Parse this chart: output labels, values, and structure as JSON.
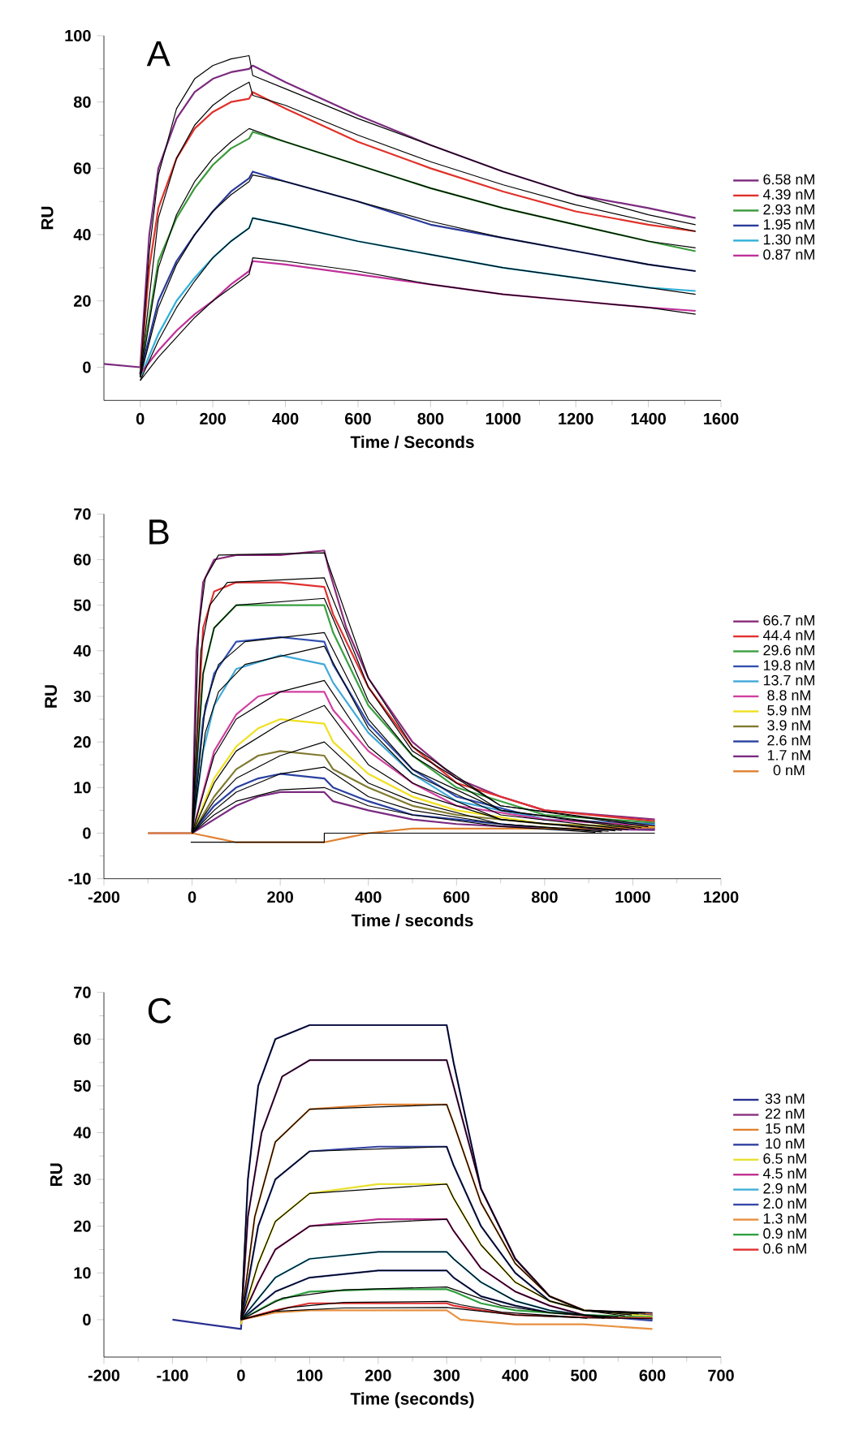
{
  "chart_data": [
    {
      "type": "line",
      "title": "A",
      "xlabel": "Time / Seconds",
      "ylabel": "RU",
      "xlim": [
        -100,
        1600
      ],
      "ylim": [
        -10,
        100
      ],
      "xticks": [
        0,
        200,
        400,
        600,
        800,
        1000,
        1200,
        1400,
        1600
      ],
      "yticks": [
        0,
        20,
        40,
        60,
        80,
        100
      ],
      "legend": "right",
      "series": [
        {
          "name": "6.58 nM",
          "color": "#7b2a7e",
          "x": [
            -100,
            0,
            25,
            50,
            100,
            150,
            200,
            250,
            300,
            310,
            400,
            600,
            800,
            1000,
            1200,
            1400,
            1530
          ],
          "values": [
            1,
            0,
            40,
            60,
            75,
            83,
            87,
            89,
            90,
            91,
            86,
            76,
            67,
            59,
            52,
            48,
            45
          ]
        },
        {
          "name": "4.39 nM",
          "color": "#e0312a",
          "x": [
            0,
            25,
            50,
            100,
            150,
            200,
            250,
            300,
            310,
            400,
            600,
            800,
            1000,
            1200,
            1400,
            1530
          ],
          "values": [
            -2,
            30,
            48,
            63,
            72,
            77,
            80,
            81,
            83,
            78,
            68,
            60,
            53,
            47,
            43,
            41
          ]
        },
        {
          "name": "2.93 nM",
          "color": "#3a9a3a",
          "x": [
            0,
            50,
            100,
            150,
            200,
            250,
            300,
            310,
            400,
            600,
            800,
            1000,
            1200,
            1400,
            1530
          ],
          "values": [
            -2,
            32,
            45,
            54,
            61,
            66,
            69,
            71,
            68,
            61,
            54,
            48,
            43,
            38,
            35
          ]
        },
        {
          "name": "1.95 nM",
          "color": "#2a3a9a",
          "x": [
            0,
            50,
            100,
            150,
            200,
            250,
            300,
            310,
            400,
            600,
            800,
            1000,
            1200,
            1400,
            1530
          ],
          "values": [
            -2,
            20,
            32,
            40,
            47,
            53,
            57,
            59,
            56,
            50,
            43,
            39,
            35,
            31,
            29
          ]
        },
        {
          "name": "1.30 nM",
          "color": "#30b0d8",
          "x": [
            0,
            50,
            100,
            150,
            200,
            250,
            300,
            310,
            400,
            600,
            800,
            1000,
            1200,
            1400,
            1530
          ],
          "values": [
            -3,
            10,
            20,
            27,
            33,
            38,
            42,
            45,
            43,
            38,
            34,
            30,
            27,
            24,
            23
          ]
        },
        {
          "name": "0.87 nM",
          "color": "#c0309a",
          "x": [
            0,
            50,
            100,
            150,
            200,
            250,
            300,
            310,
            400,
            600,
            800,
            1000,
            1200,
            1400,
            1530
          ],
          "values": [
            -2,
            5,
            11,
            16,
            20,
            25,
            29,
            32,
            31,
            28,
            25,
            22,
            20,
            18,
            17
          ]
        },
        {
          "color": "#000000",
          "x": [
            0,
            25,
            50,
            100,
            150,
            200,
            250,
            300,
            310,
            400,
            600,
            800,
            1000,
            1200,
            1400,
            1530
          ],
          "values": [
            -3,
            35,
            58,
            78,
            87,
            91,
            93,
            94,
            88,
            84,
            75,
            67,
            59,
            52,
            46,
            43
          ]
        },
        {
          "color": "#000000",
          "x": [
            0,
            50,
            100,
            150,
            200,
            250,
            300,
            310,
            400,
            600,
            800,
            1000,
            1200,
            1400,
            1530
          ],
          "values": [
            -3,
            45,
            63,
            73,
            79,
            83,
            86,
            82,
            79,
            70,
            62,
            55,
            49,
            44,
            41
          ]
        },
        {
          "color": "#000000",
          "x": [
            0,
            50,
            100,
            150,
            200,
            250,
            300,
            400,
            600,
            800,
            1000,
            1200,
            1400,
            1530
          ],
          "values": [
            -3,
            30,
            46,
            56,
            63,
            68,
            72,
            68,
            61,
            54,
            48,
            43,
            38,
            36
          ]
        },
        {
          "color": "#000000",
          "x": [
            0,
            50,
            100,
            150,
            200,
            250,
            300,
            310,
            400,
            600,
            800,
            1000,
            1200,
            1400,
            1530
          ],
          "values": [
            -3,
            18,
            31,
            40,
            47,
            52,
            56,
            58,
            56,
            50,
            44,
            39,
            35,
            31,
            29
          ]
        },
        {
          "color": "#000000",
          "x": [
            0,
            50,
            100,
            150,
            200,
            250,
            300,
            310,
            400,
            600,
            800,
            1000,
            1200,
            1400,
            1530
          ],
          "values": [
            -4,
            8,
            18,
            26,
            33,
            38,
            42,
            45,
            43,
            38,
            34,
            30,
            27,
            24,
            22
          ]
        },
        {
          "color": "#000000",
          "x": [
            0,
            50,
            100,
            150,
            200,
            250,
            300,
            310,
            400,
            600,
            800,
            1000,
            1200,
            1400,
            1530
          ],
          "values": [
            -4,
            3,
            9,
            15,
            20,
            24,
            28,
            33,
            32,
            29,
            25,
            22,
            20,
            18,
            16
          ]
        }
      ]
    },
    {
      "type": "line",
      "title": "B",
      "xlabel": "Time / seconds",
      "ylabel": "RU",
      "xlim": [
        -200,
        1200
      ],
      "ylim": [
        -10,
        70
      ],
      "xticks": [
        -200,
        0,
        200,
        400,
        600,
        800,
        1000,
        1200
      ],
      "yticks": [
        -10,
        0,
        10,
        20,
        30,
        40,
        50,
        60,
        70
      ],
      "legend": "right",
      "series": [
        {
          "name": "66.7 nM",
          "color": "#8a2a7a",
          "x": [
            -100,
            0,
            10,
            25,
            50,
            100,
            200,
            300,
            310,
            350,
            400,
            500,
            600,
            700,
            800,
            1050
          ],
          "values": [
            0,
            0,
            40,
            55,
            60,
            61,
            61,
            62,
            58,
            45,
            34,
            20,
            12,
            8,
            5,
            3
          ]
        },
        {
          "name": "44.4 nM",
          "color": "#e03030",
          "x": [
            0,
            25,
            50,
            100,
            200,
            300,
            320,
            400,
            500,
            600,
            800,
            1050
          ],
          "values": [
            0,
            45,
            53,
            55,
            55,
            54,
            48,
            32,
            19,
            11,
            5,
            2.6
          ]
        },
        {
          "name": "29.6 nM",
          "color": "#3aa040",
          "x": [
            0,
            25,
            50,
            100,
            200,
            300,
            320,
            400,
            500,
            600,
            800,
            1050
          ],
          "values": [
            0,
            35,
            45,
            50,
            50,
            50,
            44,
            28,
            17,
            10,
            4,
            2.3
          ]
        },
        {
          "name": "19.8 nM",
          "color": "#3050b0",
          "x": [
            0,
            25,
            50,
            100,
            200,
            300,
            320,
            400,
            500,
            600,
            800,
            1050
          ],
          "values": [
            0,
            25,
            35,
            42,
            43,
            42,
            37,
            24,
            14,
            8,
            3,
            2
          ]
        },
        {
          "name": "13.7 nM",
          "color": "#40a8d8",
          "x": [
            0,
            25,
            50,
            100,
            200,
            300,
            320,
            400,
            500,
            600,
            800,
            1050
          ],
          "values": [
            0,
            18,
            28,
            36,
            39,
            37,
            33,
            22,
            13,
            7,
            3,
            1.8
          ]
        },
        {
          "name": "8.8 nM",
          "color": "#d040a0",
          "x": [
            0,
            50,
            100,
            150,
            200,
            300,
            320,
            400,
            500,
            600,
            800,
            1050
          ],
          "values": [
            0,
            18,
            26,
            30,
            31,
            31,
            27,
            18,
            11,
            6,
            3,
            1.5
          ]
        },
        {
          "name": "5.9 nM",
          "color": "#f0e020",
          "x": [
            0,
            50,
            100,
            150,
            200,
            300,
            320,
            400,
            500,
            600,
            800,
            1050
          ],
          "values": [
            0,
            12,
            19,
            23,
            25,
            24,
            20,
            13,
            8,
            5,
            2,
            1.3
          ]
        },
        {
          "name": "3.9 nM",
          "color": "#807a30",
          "x": [
            0,
            50,
            100,
            150,
            200,
            300,
            320,
            400,
            500,
            600,
            800,
            1050
          ],
          "values": [
            0,
            8,
            14,
            17,
            18,
            17,
            14,
            10,
            6,
            4,
            2,
            1.1
          ]
        },
        {
          "name": "2.6 nM",
          "color": "#2840a0",
          "x": [
            0,
            50,
            100,
            150,
            200,
            300,
            320,
            400,
            500,
            600,
            800,
            1050
          ],
          "values": [
            0,
            6,
            10,
            12,
            13,
            12,
            10,
            7,
            4,
            3,
            1,
            0.9
          ]
        },
        {
          "name": "1.7 nM",
          "color": "#7a2a80",
          "x": [
            0,
            50,
            100,
            150,
            200,
            300,
            320,
            400,
            500,
            600,
            800,
            1050
          ],
          "values": [
            0,
            3,
            6,
            8,
            9,
            9,
            7,
            5,
            3,
            2,
            1,
            0.7
          ]
        },
        {
          "name": "0 nM",
          "color": "#e08030",
          "x": [
            -100,
            0,
            50,
            100,
            200,
            300,
            350,
            400,
            500,
            600,
            800,
            1050
          ],
          "values": [
            0,
            0,
            -1,
            -2,
            -2,
            -2,
            -1,
            0,
            1,
            1,
            1,
            1.2
          ]
        },
        {
          "color": "#000000",
          "x": [
            0,
            15,
            30,
            60,
            300,
            400,
            500,
            700,
            1050
          ],
          "values": [
            0,
            45,
            56,
            61,
            61.5,
            34,
            19,
            6,
            1.6
          ]
        },
        {
          "color": "#000000",
          "x": [
            0,
            20,
            40,
            80,
            300,
            400,
            500,
            700,
            1035
          ],
          "values": [
            0,
            40,
            50,
            55,
            56,
            32,
            18,
            6,
            1.4
          ]
        },
        {
          "color": "#000000",
          "x": [
            0,
            25,
            50,
            100,
            300,
            400,
            500,
            700,
            1020
          ],
          "values": [
            0,
            35,
            45,
            50,
            51.5,
            29,
            17,
            5,
            1.2
          ]
        },
        {
          "color": "#000000",
          "x": [
            0,
            30,
            60,
            120,
            300,
            400,
            500,
            700,
            1005
          ],
          "values": [
            0,
            28,
            37,
            42,
            44,
            25,
            14,
            5,
            1
          ]
        },
        {
          "color": "#000000",
          "x": [
            0,
            30,
            60,
            120,
            300,
            400,
            500,
            700,
            990
          ],
          "values": [
            0,
            22,
            31,
            37,
            41,
            23,
            13,
            4,
            0.8
          ]
        },
        {
          "color": "#000000",
          "x": [
            0,
            50,
            100,
            200,
            300,
            400,
            500,
            700,
            975
          ],
          "values": [
            0,
            17,
            25,
            31,
            33.5,
            19,
            11,
            3,
            0.6
          ]
        },
        {
          "color": "#000000",
          "x": [
            0,
            50,
            100,
            200,
            300,
            400,
            500,
            700,
            960
          ],
          "values": [
            0,
            11,
            18,
            24,
            28,
            15,
            9,
            3,
            0.5
          ]
        },
        {
          "color": "#000000",
          "x": [
            0,
            50,
            100,
            200,
            300,
            400,
            500,
            700,
            945
          ],
          "values": [
            0,
            7,
            12,
            17,
            20,
            11,
            7,
            2,
            0.4
          ]
        },
        {
          "color": "#000000",
          "x": [
            0,
            50,
            100,
            200,
            300,
            400,
            500,
            700,
            930
          ],
          "values": [
            0,
            5,
            9,
            13,
            14.5,
            8,
            5,
            2,
            0.3
          ]
        },
        {
          "color": "#000000",
          "x": [
            0,
            50,
            100,
            200,
            300,
            400,
            500,
            700,
            915
          ],
          "values": [
            0,
            4,
            7,
            9.5,
            10,
            6,
            4,
            1.5,
            0.2
          ]
        },
        {
          "color": "#000000",
          "x": [
            -3,
            300,
            300,
            1050
          ],
          "values": [
            -2,
            -2,
            0,
            0
          ]
        }
      ]
    },
    {
      "type": "line",
      "title": "C",
      "xlabel": "Time (seconds)",
      "ylabel": "RU",
      "xlim": [
        -200,
        700
      ],
      "ylim": [
        -8,
        70
      ],
      "xticks": [
        -200,
        -100,
        0,
        100,
        200,
        300,
        400,
        500,
        600,
        700
      ],
      "yticks": [
        0,
        10,
        20,
        30,
        40,
        50,
        60,
        70
      ],
      "legend": "right",
      "series": [
        {
          "name": "33 nM",
          "color": "#2a3090",
          "x": [
            -100,
            0,
            10,
            25,
            50,
            100,
            200,
            300,
            310,
            350,
            400,
            450,
            500,
            600
          ],
          "values": [
            0,
            -2,
            30,
            50,
            60,
            63,
            63,
            63,
            55,
            28,
            13,
            5,
            2,
            1
          ]
        },
        {
          "name": "22 nM",
          "color": "#8a3080",
          "x": [
            0,
            10,
            30,
            60,
            100,
            200,
            300,
            310,
            350,
            400,
            450,
            500,
            600
          ],
          "values": [
            -1,
            22,
            40,
            52,
            55.5,
            55.5,
            55.5,
            50,
            28,
            13,
            5,
            2,
            1.3
          ]
        },
        {
          "name": "15 nM",
          "color": "#e08030",
          "x": [
            0,
            20,
            50,
            100,
            200,
            300,
            310,
            350,
            400,
            450,
            500,
            600
          ],
          "values": [
            -1,
            22,
            38,
            45,
            46,
            46,
            42,
            25,
            12,
            5,
            2,
            1.1
          ]
        },
        {
          "name": "10 nM",
          "color": "#3040a0",
          "x": [
            0,
            25,
            50,
            100,
            200,
            300,
            310,
            350,
            400,
            450,
            500,
            600
          ],
          "values": [
            -1,
            20,
            30,
            36,
            37,
            37,
            33,
            20,
            10,
            4,
            2,
            0.9
          ]
        },
        {
          "name": "6.5 nM",
          "color": "#e8e030",
          "x": [
            0,
            25,
            50,
            100,
            200,
            300,
            310,
            350,
            400,
            450,
            500,
            600
          ],
          "values": [
            -1,
            12,
            21,
            27,
            29,
            29,
            26,
            16,
            8,
            4,
            2,
            0.7
          ]
        },
        {
          "name": "4.5 nM",
          "color": "#c03090",
          "x": [
            0,
            25,
            50,
            100,
            200,
            300,
            310,
            350,
            400,
            450,
            500,
            600
          ],
          "values": [
            0,
            8,
            15,
            20,
            21.5,
            21.5,
            19,
            11,
            6,
            3,
            1,
            0
          ]
        },
        {
          "name": "2.9 nM",
          "color": "#40b0d8",
          "x": [
            0,
            50,
            100,
            200,
            300,
            310,
            350,
            400,
            450,
            500,
            600
          ],
          "values": [
            0,
            9,
            13,
            14.5,
            14.5,
            13,
            8,
            4,
            2,
            1,
            0.1
          ]
        },
        {
          "name": "2.0 nM",
          "color": "#3848a8",
          "x": [
            0,
            50,
            100,
            200,
            300,
            310,
            350,
            400,
            450,
            500,
            600
          ],
          "values": [
            0,
            6,
            9,
            10.5,
            10.5,
            9,
            5,
            3,
            1.5,
            1,
            -0.2
          ]
        },
        {
          "name": "1.3 nM",
          "color": "#e89040",
          "x": [
            0,
            50,
            100,
            200,
            300,
            320,
            400,
            500,
            600
          ],
          "values": [
            0,
            1.5,
            2,
            2,
            2,
            0,
            -1,
            -1,
            -2
          ]
        },
        {
          "name": "0.9 nM",
          "color": "#30a040",
          "x": [
            0,
            50,
            100,
            200,
            300,
            310,
            350,
            400,
            500,
            600
          ],
          "values": [
            0,
            4,
            6,
            6.5,
            6.5,
            6,
            3.5,
            2,
            1,
            0.5
          ]
        },
        {
          "name": "0.6 nM",
          "color": "#e03030",
          "x": [
            0,
            50,
            100,
            200,
            300,
            310,
            350,
            400,
            500,
            600
          ],
          "values": [
            0,
            2,
            3.5,
            3.5,
            3.5,
            3,
            2,
            1,
            0.5,
            0.3
          ]
        },
        {
          "color": "#000000",
          "x": [
            0,
            10,
            25,
            50,
            100,
            300,
            310,
            350,
            400,
            450,
            500,
            600
          ],
          "values": [
            0,
            30,
            50,
            60,
            63,
            63,
            55,
            28,
            13,
            5,
            2,
            1.5
          ]
        },
        {
          "color": "#000000",
          "x": [
            0,
            10,
            30,
            60,
            100,
            300,
            310,
            350,
            400,
            450,
            500,
            590
          ],
          "values": [
            0,
            22,
            40,
            52,
            55.5,
            55.5,
            50,
            28,
            13,
            5,
            2,
            1.4
          ]
        },
        {
          "color": "#000000",
          "x": [
            0,
            20,
            50,
            100,
            300,
            310,
            350,
            400,
            450,
            500,
            580
          ],
          "values": [
            0,
            22,
            38,
            45,
            46,
            42,
            25,
            12,
            5,
            2,
            1.2
          ]
        },
        {
          "color": "#000000",
          "x": [
            0,
            25,
            50,
            100,
            300,
            310,
            350,
            400,
            450,
            500,
            570
          ],
          "values": [
            0,
            20,
            30,
            36,
            37,
            33,
            20,
            10,
            4,
            2,
            1
          ]
        },
        {
          "color": "#000000",
          "x": [
            0,
            25,
            50,
            100,
            300,
            310,
            350,
            400,
            450,
            500,
            560
          ],
          "values": [
            0,
            12,
            21,
            27,
            29,
            26,
            16,
            8,
            4,
            2,
            0.8
          ]
        },
        {
          "color": "#000000",
          "x": [
            0,
            25,
            50,
            100,
            300,
            310,
            350,
            400,
            450,
            500,
            550
          ],
          "values": [
            0,
            8,
            15,
            20,
            21.5,
            19,
            11,
            6,
            3,
            1,
            0.6
          ]
        },
        {
          "color": "#000000",
          "x": [
            0,
            50,
            100,
            200,
            300,
            310,
            350,
            400,
            450,
            500,
            540
          ],
          "values": [
            0,
            9,
            13,
            14.5,
            14.5,
            13,
            8,
            4,
            2,
            1,
            0.4
          ]
        },
        {
          "color": "#000000",
          "x": [
            0,
            50,
            100,
            200,
            300,
            310,
            350,
            400,
            450,
            500,
            530
          ],
          "values": [
            0,
            6,
            9,
            10.5,
            10.5,
            9,
            5,
            3,
            1.5,
            1,
            0.3
          ]
        },
        {
          "color": "#000000",
          "x": [
            0,
            50,
            150,
            300,
            400,
            500,
            600
          ],
          "values": [
            0,
            1.8,
            2.5,
            2.6,
            1,
            0.4,
            0.2
          ]
        },
        {
          "color": "#000000",
          "x": [
            0,
            60,
            150,
            300,
            320,
            380,
            450,
            520
          ],
          "values": [
            0,
            4.6,
            6.4,
            7,
            6,
            3,
            1.5,
            0.6
          ]
        },
        {
          "color": "#000000",
          "x": [
            0,
            70,
            150,
            300,
            320,
            380,
            450,
            505
          ],
          "values": [
            0,
            2.6,
            3.7,
            3.9,
            3.2,
            1.6,
            0.9,
            0.3
          ]
        }
      ]
    }
  ]
}
